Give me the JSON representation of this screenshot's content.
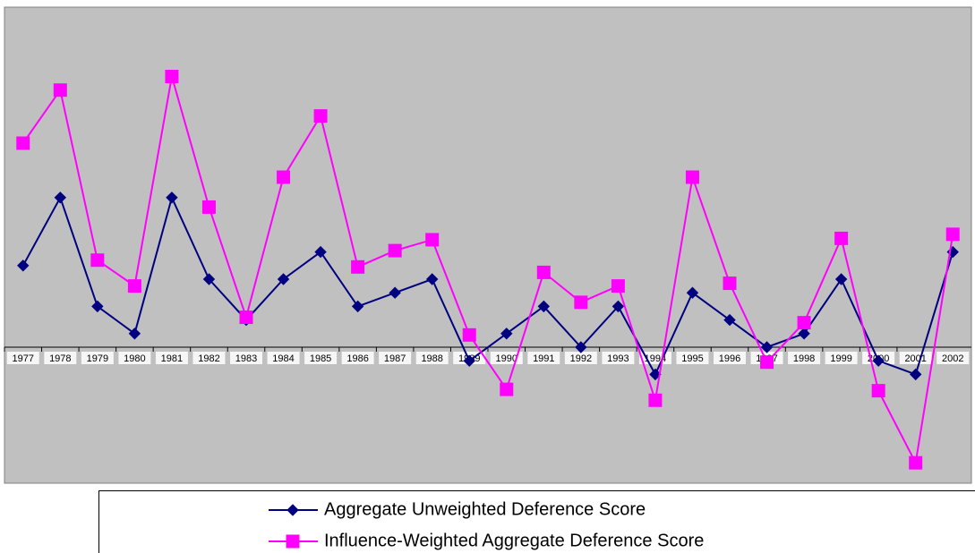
{
  "chart_data": {
    "type": "line",
    "categories": [
      "1977",
      "1978",
      "1979",
      "1980",
      "1981",
      "1982",
      "1983",
      "1984",
      "1985",
      "1986",
      "1987",
      "1988",
      "1989",
      "1990",
      "1991",
      "1992",
      "1993",
      "1994",
      "1995",
      "1996",
      "1997",
      "1998",
      "1999",
      "2000",
      "2001",
      "2002"
    ],
    "series": [
      {
        "name": "Aggregate Unweighted Deference Score",
        "color": "#000080",
        "marker": "diamond",
        "values": [
          6,
          11,
          3,
          1,
          11,
          5,
          2,
          5,
          7,
          3,
          4,
          5,
          -1,
          1,
          3,
          0,
          3,
          -2,
          4,
          2,
          0,
          1,
          5,
          -1,
          -2,
          7
        ]
      },
      {
        "name": "Influence-Weighted Aggregate Deference Score",
        "color": "#ff00ff",
        "marker": "square",
        "values": [
          15.0,
          18.9,
          6.4,
          4.5,
          19.9,
          10.3,
          2.2,
          12.5,
          17.0,
          5.9,
          7.1,
          7.9,
          0.9,
          -3.1,
          5.5,
          3.3,
          4.5,
          -3.9,
          12.5,
          4.7,
          -1.1,
          1.8,
          8.0,
          -3.2,
          -8.5,
          8.3
        ]
      }
    ],
    "ylim": [
      -10,
      25
    ],
    "grid": false,
    "background": "#c0c0c0"
  }
}
